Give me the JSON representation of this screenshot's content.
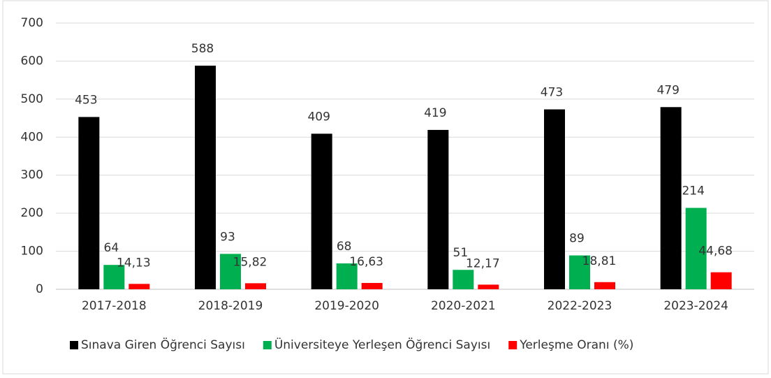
{
  "chart_data": {
    "type": "bar",
    "categories": [
      "2017-2018",
      "2018-2019",
      "2019-2020",
      "2020-2021",
      "2022-2023",
      "2023-2024"
    ],
    "series": [
      {
        "name": "Sınava Giren Öğrenci Sayısı",
        "color": "#000000",
        "values": [
          453,
          588,
          409,
          419,
          473,
          479
        ]
      },
      {
        "name": "Üniversiteye Yerleşen Öğrenci Sayısı",
        "color": "#00b050",
        "values": [
          64,
          93,
          68,
          51,
          89,
          214
        ]
      },
      {
        "name": "Yerleşme Oranı (%)",
        "color": "#ff0000",
        "values": [
          14.13,
          15.82,
          16.63,
          12.17,
          18.81,
          44.68
        ],
        "value_labels": [
          "14,13",
          "15,82",
          "16,63",
          "12,17",
          "18,81",
          "44,68"
        ]
      }
    ],
    "ylim": [
      0,
      700
    ],
    "yticks": [
      0,
      100,
      200,
      300,
      400,
      500,
      600,
      700
    ],
    "grid": true,
    "legend": "bottom"
  }
}
